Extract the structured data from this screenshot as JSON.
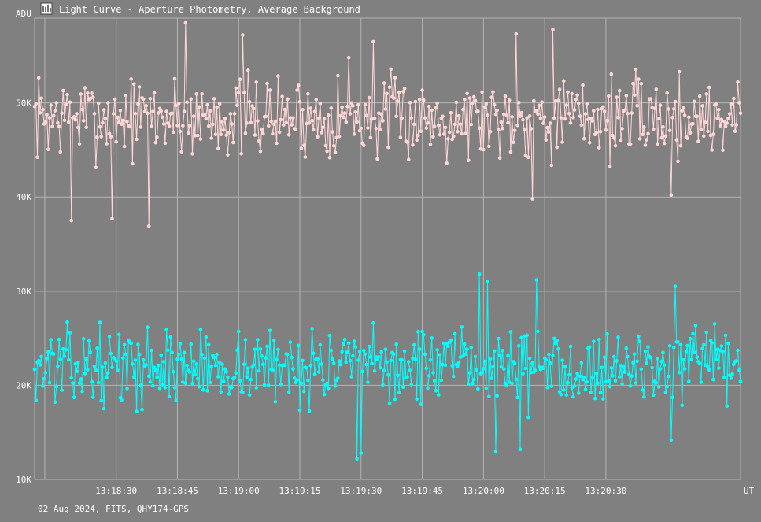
{
  "window": {
    "title": "Light Curve - Aperture Photometry, Average Background",
    "icon": "light-curve-app-icon"
  },
  "footer": {
    "caption": "02 Aug 2024, FITS, QHY174-GPS"
  },
  "colors": {
    "background": "#808080",
    "grid": "#b4b4b4",
    "series_1": "#ffd6d6",
    "series_2": "#00ffff",
    "text": "#ffffff"
  },
  "chart_data": {
    "type": "line",
    "ylabel": "ADU",
    "xlabel": "UT",
    "ylim": [
      10000,
      59000
    ],
    "xlim": [
      "13:18:10",
      "13:21:03"
    ],
    "grid": true,
    "yticks": [
      {
        "value": 10000,
        "label": "10K"
      },
      {
        "value": 20000,
        "label": "20K"
      },
      {
        "value": 30000,
        "label": "30K"
      },
      {
        "value": 40000,
        "label": "40K"
      },
      {
        "value": 50000,
        "label": "50K"
      }
    ],
    "xticks": [
      "13:18:30",
      "13:18:45",
      "13:19:00",
      "13:19:15",
      "13:19:30",
      "13:19:45",
      "13:20:00",
      "13:20:15",
      "13:20:30"
    ],
    "series": [
      {
        "color": "#ffd6d6",
        "mean": 48500,
        "spread": 4500,
        "samples": 520,
        "seed": 7,
        "outliers": [
          {
            "t": "13:18:19",
            "y": 37500
          },
          {
            "t": "13:18:29",
            "y": 37700
          },
          {
            "t": "13:18:38",
            "y": 36900
          },
          {
            "t": "13:18:47",
            "y": 58500
          },
          {
            "t": "13:19:01",
            "y": 57200
          },
          {
            "t": "13:19:27",
            "y": 54800
          },
          {
            "t": "13:19:33",
            "y": 56500
          },
          {
            "t": "13:20:08",
            "y": 57300
          },
          {
            "t": "13:20:12",
            "y": 39800
          },
          {
            "t": "13:20:17",
            "y": 57800
          },
          {
            "t": "13:20:46",
            "y": 40200
          }
        ]
      },
      {
        "color": "#00ffff",
        "mean": 22000,
        "spread": 4000,
        "samples": 520,
        "seed": 13,
        "outliers": [
          {
            "t": "13:19:29",
            "y": 12200
          },
          {
            "t": "13:19:30",
            "y": 12800
          },
          {
            "t": "13:19:59",
            "y": 31800
          },
          {
            "t": "13:20:01",
            "y": 31000
          },
          {
            "t": "13:20:03",
            "y": 13000
          },
          {
            "t": "13:20:09",
            "y": 13200
          },
          {
            "t": "13:20:13",
            "y": 31200
          },
          {
            "t": "13:20:47",
            "y": 30500
          },
          {
            "t": "13:20:46",
            "y": 14200
          }
        ]
      }
    ]
  }
}
